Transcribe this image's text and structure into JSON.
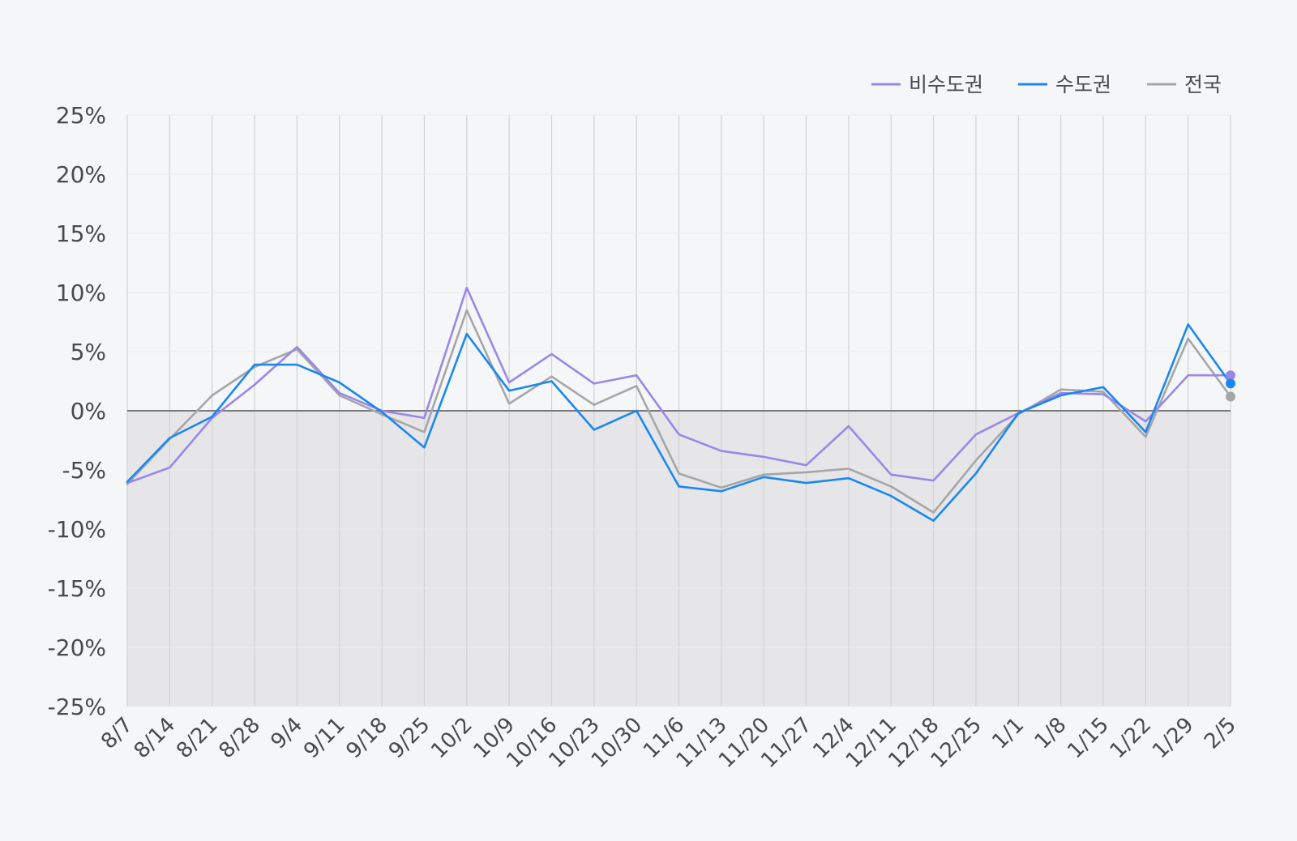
{
  "chart_data": {
    "type": "line",
    "title": "",
    "xlabel": "",
    "ylabel": "",
    "ylim": [
      -25,
      25
    ],
    "y_ticks": [
      25,
      20,
      15,
      10,
      5,
      0,
      -5,
      -10,
      -15,
      -20,
      -25
    ],
    "y_tick_labels": [
      "25%",
      "20%",
      "15%",
      "10%",
      "5%",
      "0%",
      "-5%",
      "-10%",
      "-15%",
      "-20%",
      "-25%"
    ],
    "categories": [
      "8/7",
      "8/14",
      "8/21",
      "8/28",
      "9/4",
      "9/11",
      "9/18",
      "9/25",
      "10/2",
      "10/9",
      "10/16",
      "10/23",
      "10/30",
      "11/6",
      "11/13",
      "11/20",
      "11/27",
      "12/4",
      "12/11",
      "12/18",
      "12/25",
      "1/1",
      "1/8",
      "1/15",
      "1/22",
      "1/29",
      "2/5"
    ],
    "grid": true,
    "negative_region_shaded": true,
    "legend_position": "top-right",
    "series": [
      {
        "name": "비수도권",
        "color": "#9b87e8",
        "values": [
          -6.1,
          -4.8,
          -0.6,
          2.2,
          5.4,
          1.5,
          0.0,
          -0.6,
          10.4,
          2.4,
          4.8,
          2.3,
          3.0,
          -2.0,
          -3.4,
          -3.9,
          -4.6,
          -1.3,
          -5.4,
          -5.9,
          -2.0,
          -0.2,
          1.5,
          1.4,
          -0.9,
          3.0,
          3.0
        ]
      },
      {
        "name": "수도권",
        "color": "#1a88f0",
        "values": [
          -6.0,
          -2.3,
          -0.5,
          3.9,
          3.9,
          2.4,
          -0.1,
          -3.1,
          6.5,
          1.7,
          2.5,
          -1.6,
          0.0,
          -6.4,
          -6.8,
          -5.6,
          -6.1,
          -5.7,
          -7.2,
          -9.3,
          -5.3,
          -0.2,
          1.3,
          2.0,
          -1.8,
          7.3,
          2.3
        ]
      },
      {
        "name": "전국",
        "color": "#a6a6a6",
        "values": [
          -6.2,
          -2.4,
          1.3,
          3.7,
          5.2,
          1.3,
          -0.3,
          -1.8,
          8.5,
          0.6,
          2.9,
          0.5,
          2.1,
          -5.3,
          -6.5,
          -5.4,
          -5.2,
          -4.9,
          -6.4,
          -8.6,
          -4.2,
          -0.3,
          1.8,
          1.6,
          -2.2,
          6.1,
          1.2
        ]
      }
    ]
  }
}
